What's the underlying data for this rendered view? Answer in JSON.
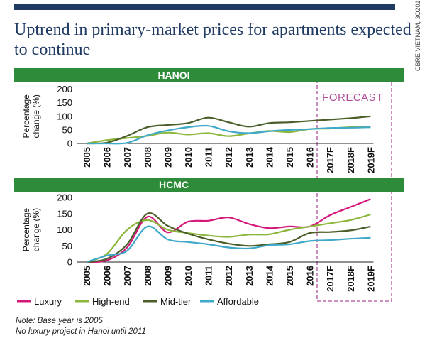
{
  "title": "Uptrend in primary-market prices for apartments expected to continue",
  "credit": "CBRE VIETNAM, 3Q2017",
  "notes": [
    "Note: Base year is 2005",
    "No luxury project in Hanoi until 2011"
  ],
  "forecast_label": "FORECAST",
  "colors": {
    "band": "#2e8b3a",
    "Luxury": "#d4197a",
    "High-end": "#8db63c",
    "Mid-tier": "#4b5e2a",
    "Affordable": "#3ea9c9",
    "forecast_box": "#b0509a"
  },
  "legend": [
    "Luxury",
    "High-end",
    "Mid-tier",
    "Affordable"
  ],
  "chart_data": [
    {
      "type": "line",
      "title": "HANOI",
      "ylabel": "Percentage change (%)",
      "yticks": [
        0,
        50,
        100,
        150,
        200
      ],
      "ylim": [
        0,
        200
      ],
      "categories": [
        "2005",
        "2006",
        "2007",
        "2008",
        "2009",
        "2010",
        "2011",
        "2012",
        "2013",
        "2014",
        "2015",
        "2016",
        "2017F",
        "2018F",
        "2019F"
      ],
      "series": [
        {
          "name": "High-end",
          "values": [
            0,
            12,
            20,
            28,
            40,
            33,
            38,
            27,
            37,
            46,
            42,
            53,
            55,
            60,
            62
          ]
        },
        {
          "name": "Mid-tier",
          "values": [
            0,
            3,
            28,
            60,
            68,
            75,
            95,
            78,
            62,
            75,
            78,
            83,
            88,
            93,
            100
          ]
        },
        {
          "name": "Affordable",
          "values": [
            0,
            0,
            2,
            30,
            48,
            60,
            65,
            45,
            38,
            45,
            50,
            53,
            57,
            58,
            60
          ]
        }
      ]
    },
    {
      "type": "line",
      "title": "HCMC",
      "ylabel": "Percentage change (%)",
      "yticks": [
        0,
        50,
        100,
        150,
        200
      ],
      "ylim": [
        0,
        200
      ],
      "categories": [
        "2005",
        "2006",
        "2007",
        "2008",
        "2009",
        "2010",
        "2011",
        "2012",
        "2013",
        "2014",
        "2015",
        "2016",
        "2017F",
        "2018F",
        "2019F"
      ],
      "series": [
        {
          "name": "Luxury",
          "values": [
            0,
            5,
            45,
            140,
            92,
            125,
            128,
            138,
            118,
            105,
            110,
            110,
            145,
            170,
            195
          ]
        },
        {
          "name": "High-end",
          "values": [
            0,
            25,
            100,
            130,
            100,
            90,
            82,
            78,
            85,
            86,
            100,
            110,
            120,
            130,
            147
          ]
        },
        {
          "name": "Mid-tier",
          "values": [
            0,
            10,
            55,
            150,
            112,
            88,
            70,
            57,
            50,
            55,
            62,
            90,
            93,
            98,
            110
          ]
        },
        {
          "name": "Affordable",
          "values": [
            0,
            20,
            35,
            110,
            70,
            62,
            55,
            45,
            42,
            52,
            55,
            65,
            68,
            72,
            75
          ]
        }
      ]
    }
  ]
}
